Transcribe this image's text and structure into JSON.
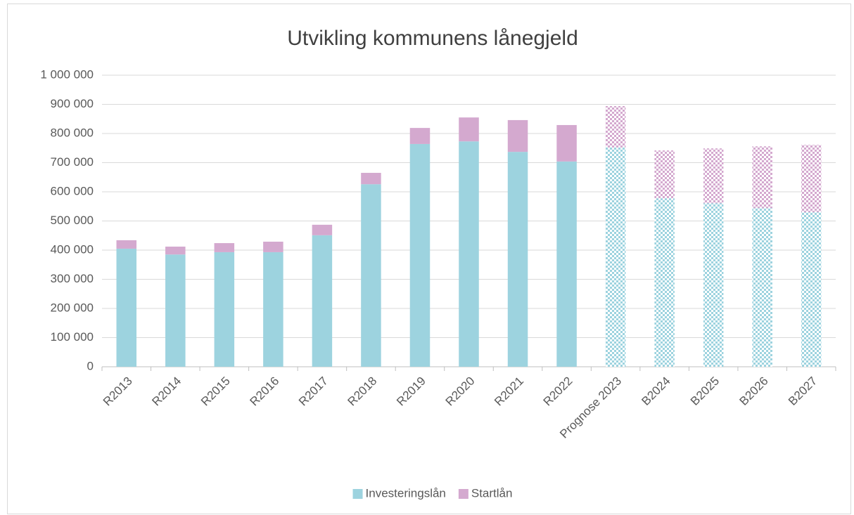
{
  "chart_data": {
    "type": "stacked_bar",
    "title": "Utvikling kommunens lånegjeld",
    "categories": [
      "R2013",
      "R2014",
      "R2015",
      "R2016",
      "R2017",
      "R2018",
      "R2019",
      "R2020",
      "R2021",
      "R2022",
      "Prognose 2023",
      "B2024",
      "B2025",
      "B2026",
      "B2027"
    ],
    "hatched": [
      false,
      false,
      false,
      false,
      false,
      false,
      false,
      false,
      false,
      false,
      true,
      true,
      true,
      true,
      true
    ],
    "series": [
      {
        "name": "Investeringslån",
        "color": "#9dd3df",
        "values": [
          405000,
          385000,
          393000,
          393000,
          451000,
          626000,
          764000,
          773000,
          737000,
          704000,
          752000,
          578000,
          561000,
          544000,
          530000
        ]
      },
      {
        "name": "Startlån",
        "color": "#d4a9cf",
        "values": [
          29000,
          27000,
          31000,
          36000,
          36000,
          39000,
          55000,
          82000,
          109000,
          125000,
          142000,
          164000,
          188000,
          212000,
          231000
        ]
      }
    ],
    "ylim": [
      0,
      1000000
    ],
    "yticks": [
      0,
      {
        "value": 100000,
        "label": "100 000"
      },
      {
        "value": 200000,
        "label": "200 000"
      },
      {
        "value": 300000,
        "label": "300 000"
      },
      {
        "value": 400000,
        "label": "400 000"
      },
      {
        "value": 500000,
        "label": "500 000"
      },
      {
        "value": 600000,
        "label": "600 000"
      },
      {
        "value": 700000,
        "label": "700 000"
      },
      {
        "value": 800000,
        "label": "800 000"
      },
      {
        "value": 900000,
        "label": "900 000"
      },
      {
        "value": 1000000,
        "label": "1 000 000"
      }
    ],
    "grid": true,
    "legend": "bottom"
  }
}
